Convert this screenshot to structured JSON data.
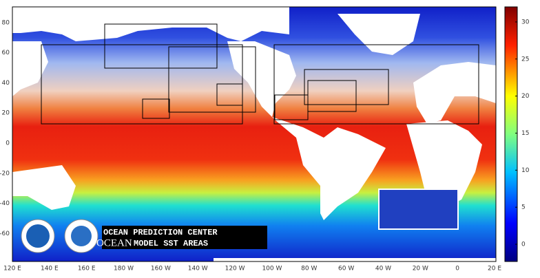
{
  "map": {
    "lat_ticks": [
      80,
      60,
      40,
      20,
      0,
      -20,
      -40,
      -60
    ],
    "lon_ticks": [
      "120 E",
      "140 E",
      "160 E",
      "180 W",
      "160 W",
      "140 W",
      "120 W",
      "100 W",
      "80 W",
      "60 W",
      "40 W",
      "20 W",
      "0",
      "20 E"
    ]
  },
  "colorbar": {
    "ticks": [
      0,
      5,
      10,
      15,
      20,
      25,
      30
    ]
  },
  "banner": {
    "line1": "OCEAN PREDICTION CENTER",
    "line2_big": "OCEAN",
    "line2_small": "MODEL SST AREAS"
  }
}
